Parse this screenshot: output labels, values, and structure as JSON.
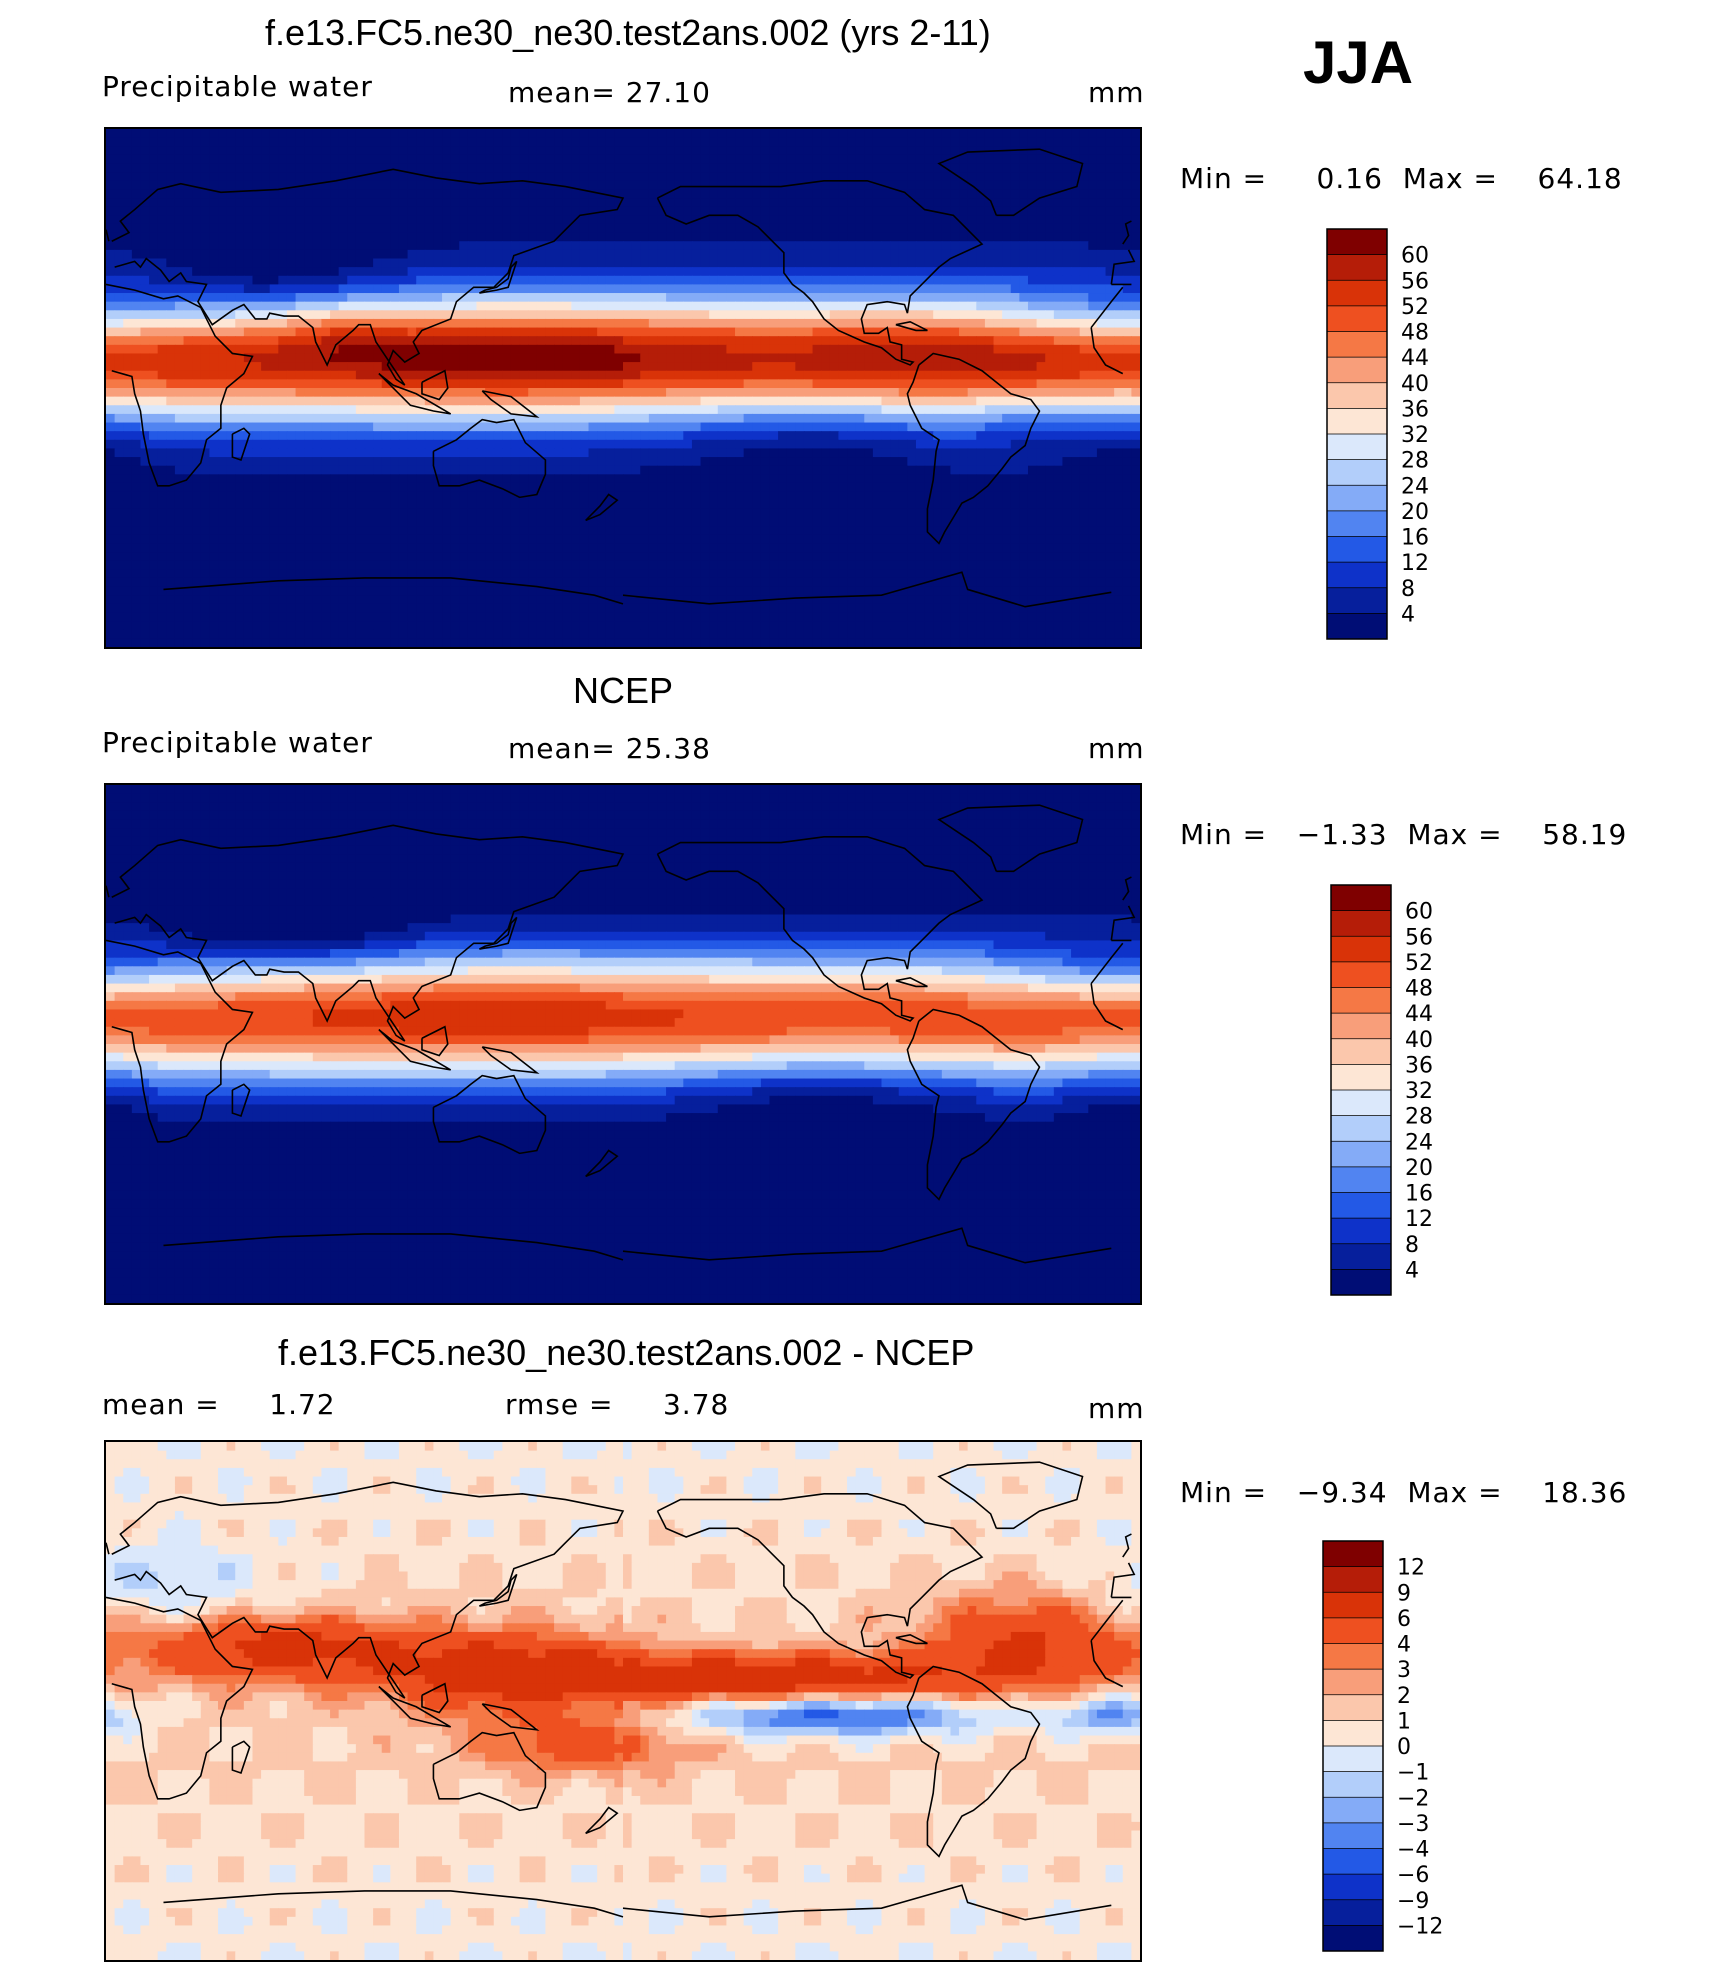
{
  "season": "JJA",
  "panels": [
    {
      "title": "f.e13.FC5.ne30_ne30.test2ans.002 (yrs 2-11)",
      "left_text": "Precipitable  water",
      "mid_text": "mean=   27.10",
      "units": "mm",
      "minmax": "Min =     0.16  Max =    64.18",
      "field": "model",
      "legend_levels": [
        "60",
        "56",
        "52",
        "48",
        "44",
        "40",
        "36",
        "32",
        "28",
        "24",
        "20",
        "16",
        "12",
        "8",
        "4"
      ],
      "legend_colors": [
        "#7f0000",
        "#b51d08",
        "#d93308",
        "#ee5020",
        "#f57845",
        "#f89e7a",
        "#fbc7ac",
        "#fde6d5",
        "#dbe8fb",
        "#b2cefa",
        "#84abf7",
        "#5184f1",
        "#2359e6",
        "#0e32c9",
        "#061f9c",
        "#000d75"
      ]
    },
    {
      "title": "NCEP",
      "left_text": "Precipitable  water",
      "mid_text": "mean=   25.38",
      "units": "mm",
      "minmax": "Min =   −1.33  Max =    58.19",
      "field": "obs",
      "legend_levels": [
        "60",
        "56",
        "52",
        "48",
        "44",
        "40",
        "36",
        "32",
        "28",
        "24",
        "20",
        "16",
        "12",
        "8",
        "4"
      ],
      "legend_colors": [
        "#7f0000",
        "#b51d08",
        "#d93308",
        "#ee5020",
        "#f57845",
        "#f89e7a",
        "#fbc7ac",
        "#fde6d5",
        "#dbe8fb",
        "#b2cefa",
        "#84abf7",
        "#5184f1",
        "#2359e6",
        "#0e32c9",
        "#061f9c",
        "#000d75"
      ]
    },
    {
      "title": "f.e13.FC5.ne30_ne30.test2ans.002 - NCEP",
      "left_text": "mean =     1.72",
      "mid_text": "rmse =     3.78",
      "units": "mm",
      "minmax": "Min =   −9.34  Max =    18.36",
      "field": "diff",
      "legend_levels": [
        "12",
        "9",
        "6",
        "4",
        "3",
        "2",
        "1",
        "0",
        "−1",
        "−2",
        "−3",
        "−4",
        "−6",
        "−9",
        "−12"
      ],
      "legend_colors": [
        "#7f0000",
        "#b51d08",
        "#d93308",
        "#ee5020",
        "#f57845",
        "#f89e7a",
        "#fbc7ac",
        "#fde6d5",
        "#dbe8fb",
        "#b2cefa",
        "#84abf7",
        "#5184f1",
        "#2359e6",
        "#0e32c9",
        "#061f9c",
        "#000d75"
      ]
    }
  ]
}
